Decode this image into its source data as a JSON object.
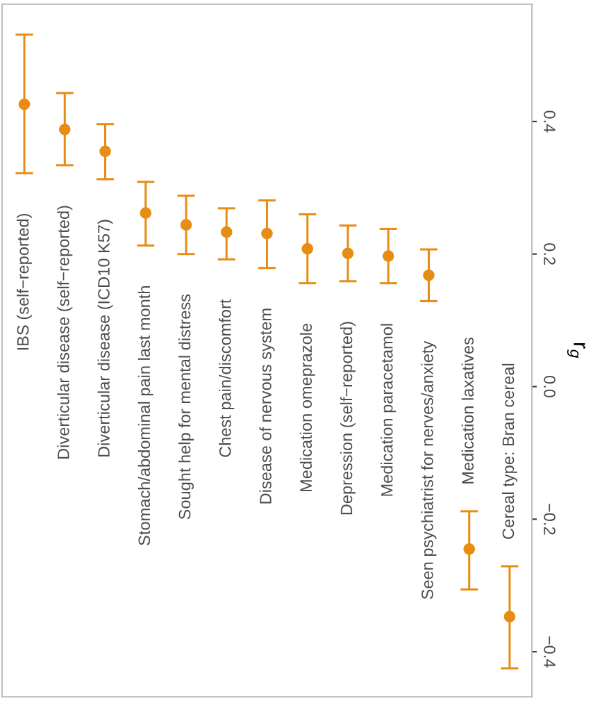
{
  "chart_data": {
    "type": "scatter",
    "ylabel": "r$_{g}$",
    "categories": [
      "IBS (self−reported)",
      "Diverticular disease (self−reported)",
      "Diverticular disease (ICD10 K57)",
      "Stomach/abdominal pain last month",
      "Sought help for mental distress",
      "Chest pain/discomfort",
      "Disease of nervous system",
      "Medication omeprazole",
      "Depression (self−reported)",
      "Medication paracetamol",
      "Seen psychiatrist for nerves/anxiety",
      "Medication laxatives",
      "Cereal type: Bran cereal"
    ],
    "series": [
      {
        "color": "#e88d14",
        "values": [
          0.426,
          0.388,
          0.355,
          0.262,
          0.244,
          0.233,
          0.231,
          0.208,
          0.201,
          0.197,
          0.168,
          -0.245,
          -0.347
        ],
        "errors": [
          [
            0.322,
            0.531
          ],
          [
            0.334,
            0.443
          ],
          [
            0.313,
            0.396
          ],
          [
            0.213,
            0.309
          ],
          [
            0.2,
            0.288
          ],
          [
            0.192,
            0.269
          ],
          [
            0.179,
            0.281
          ],
          [
            0.156,
            0.26
          ],
          [
            0.159,
            0.243
          ],
          [
            0.156,
            0.238
          ],
          [
            0.129,
            0.207
          ],
          [
            -0.306,
            -0.188
          ],
          [
            -0.425,
            -0.271
          ]
        ]
      }
    ],
    "ylim": [
      -0.468,
      0.577
    ],
    "yticks": [
      {
        "value": -0.4,
        "label": "−0.4"
      },
      {
        "value": -0.2,
        "label": "−0.2"
      },
      {
        "value": 0.0,
        "label": "0.0"
      },
      {
        "value": 0.2,
        "label": "0.2"
      },
      {
        "value": 0.4,
        "label": "0.4"
      }
    ],
    "marker": "circle",
    "grid": false
  }
}
